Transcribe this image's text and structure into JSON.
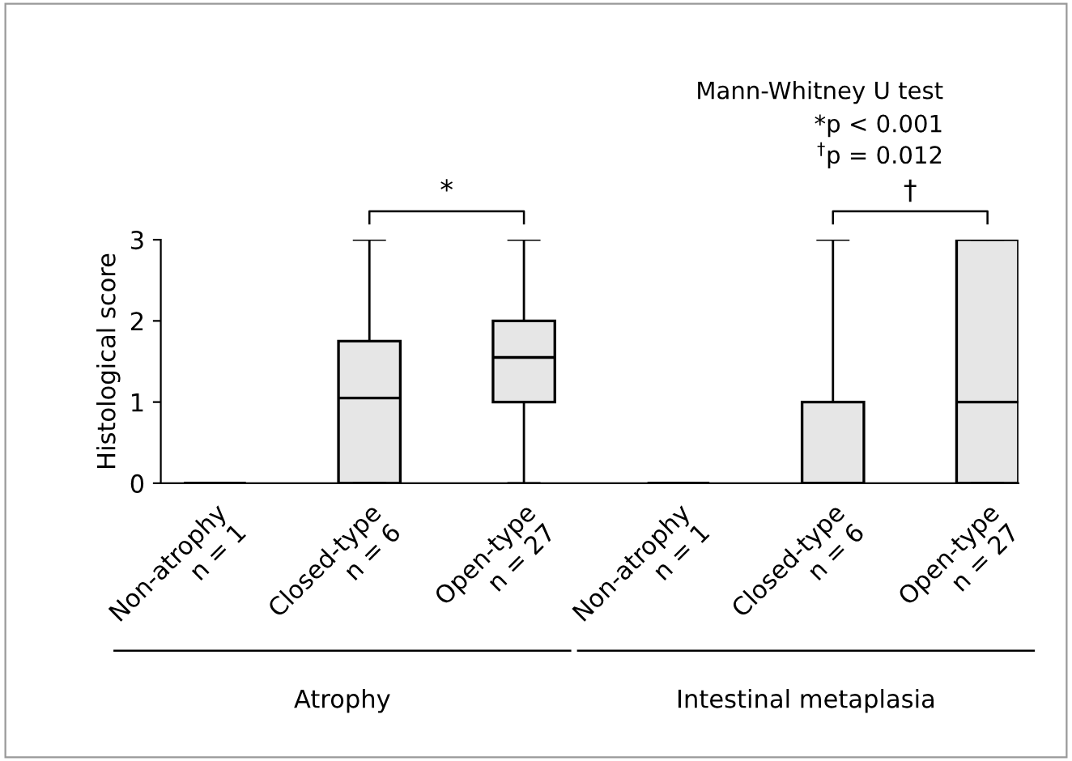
{
  "chart_data": {
    "type": "box",
    "title": "Mann-Whitney U test",
    "subtitle": "*p < 0.001\n$^{†}$p = 0.012",
    "ylabel": "Histological score",
    "categories": [
      "Non-atrophy\nn = 1",
      "Closed-type\nn = 6",
      "Open-type\nn = 27",
      "Non-atrophy\nn = 1",
      "Closed-type\nn = 6",
      "Open-type\nn = 27"
    ],
    "colors": [
      "#000000",
      "#e6e6e6",
      "#e6e6e6",
      "#000000",
      "#e6e6e6",
      "#e6e6e6"
    ],
    "boxes": [
      {
        "low": 0,
        "q1": 0,
        "median": 0,
        "q3": 0,
        "high": 0
      },
      {
        "low": 0,
        "q1": 0,
        "median": 1.05,
        "q3": 1.75,
        "high": 3
      },
      {
        "low": 0,
        "q1": 1,
        "median": 1.55,
        "q3": 2,
        "high": 3
      },
      {
        "low": 0,
        "q1": 0,
        "median": 0,
        "q3": 0,
        "high": 0
      },
      {
        "low": 0,
        "q1": 0,
        "median": 0,
        "q3": 1,
        "high": 3
      },
      {
        "low": 0,
        "q1": 0,
        "median": 1,
        "q3": 3,
        "high": 3
      }
    ],
    "ylim": [
      0,
      3
    ],
    "yticks": [
      0,
      1,
      2,
      3
    ],
    "grid": false,
    "legend": false,
    "annotations": [
      "*",
      "†",
      "Atrophy",
      "Intestinal metaplasia"
    ]
  }
}
